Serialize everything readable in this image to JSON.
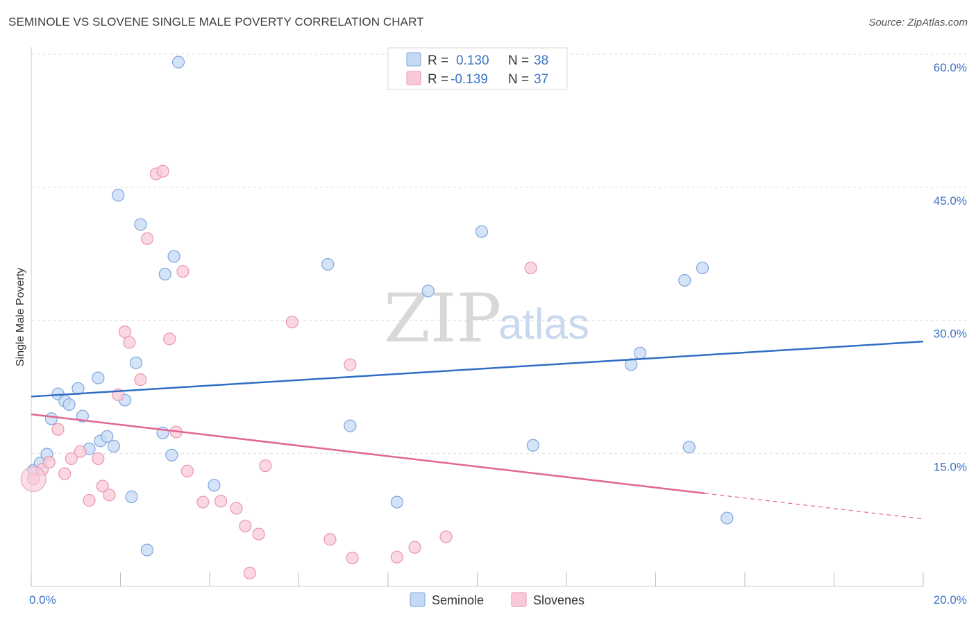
{
  "header": {
    "title": "SEMINOLE VS SLOVENE SINGLE MALE POVERTY CORRELATION CHART",
    "source": "Source: ZipAtlas.com"
  },
  "watermark": {
    "zip": "ZIP",
    "atlas": "atlas"
  },
  "legend_top": {
    "rows": [
      {
        "r_label": "R =",
        "r_value": "0.130",
        "n_label": "N =",
        "n_value": "38"
      },
      {
        "r_label": "R =",
        "r_value": "-0.139",
        "n_label": "N =",
        "n_value": "37"
      }
    ]
  },
  "chart_data": {
    "type": "scatter",
    "title": "SEMINOLE VS SLOVENE SINGLE MALE POVERTY CORRELATION CHART",
    "xlabel": "",
    "ylabel": "Single Male Poverty",
    "xlim": [
      0,
      20
    ],
    "ylim": [
      0,
      60
    ],
    "x_tick_labels": [
      "0.0%",
      "20.0%"
    ],
    "y_ticks": [
      15,
      30,
      45,
      60
    ],
    "y_tick_labels": [
      "15.0%",
      "30.0%",
      "45.0%",
      "60.0%"
    ],
    "legend": [
      "Seminole",
      "Slovenes"
    ],
    "colors": {
      "seminole_fill": "#c5d9f5",
      "seminole_stroke": "#7ea6dc",
      "seminole_line": "#2f6ec4",
      "slovenes_fill": "#f9c9d7",
      "slovenes_stroke": "#e896b0",
      "slovenes_line": "#e0668e",
      "value_text": "#3b73c8",
      "grid": "#dddddd"
    },
    "series": [
      {
        "name": "Seminole",
        "r": 0.13,
        "n": 38,
        "trend": {
          "x": [
            0,
            20
          ],
          "y": [
            21.4,
            27.6
          ]
        },
        "points": [
          {
            "x": 0.05,
            "y": 13.1
          },
          {
            "x": 0.2,
            "y": 13.9
          },
          {
            "x": 0.35,
            "y": 14.9
          },
          {
            "x": 0.45,
            "y": 18.9
          },
          {
            "x": 0.6,
            "y": 21.7
          },
          {
            "x": 0.75,
            "y": 20.9
          },
          {
            "x": 0.85,
            "y": 20.5
          },
          {
            "x": 1.05,
            "y": 22.3
          },
          {
            "x": 1.15,
            "y": 19.2
          },
          {
            "x": 1.3,
            "y": 15.5
          },
          {
            "x": 1.5,
            "y": 23.5
          },
          {
            "x": 1.55,
            "y": 16.4
          },
          {
            "x": 1.7,
            "y": 16.9
          },
          {
            "x": 1.85,
            "y": 15.8
          },
          {
            "x": 1.95,
            "y": 44.1
          },
          {
            "x": 2.1,
            "y": 21.0
          },
          {
            "x": 2.25,
            "y": 10.1
          },
          {
            "x": 2.35,
            "y": 25.2
          },
          {
            "x": 2.45,
            "y": 40.8
          },
          {
            "x": 2.6,
            "y": 4.1
          },
          {
            "x": 2.95,
            "y": 17.3
          },
          {
            "x": 3.0,
            "y": 35.2
          },
          {
            "x": 3.15,
            "y": 14.8
          },
          {
            "x": 3.2,
            "y": 37.2
          },
          {
            "x": 3.3,
            "y": 59.1
          },
          {
            "x": 4.1,
            "y": 11.4
          },
          {
            "x": 6.65,
            "y": 36.3
          },
          {
            "x": 7.15,
            "y": 18.1
          },
          {
            "x": 8.2,
            "y": 9.5
          },
          {
            "x": 8.9,
            "y": 33.3
          },
          {
            "x": 10.1,
            "y": 40.0
          },
          {
            "x": 11.25,
            "y": 15.9
          },
          {
            "x": 13.45,
            "y": 25.0
          },
          {
            "x": 13.65,
            "y": 26.3
          },
          {
            "x": 14.65,
            "y": 34.5
          },
          {
            "x": 15.05,
            "y": 35.9
          },
          {
            "x": 14.75,
            "y": 15.7
          },
          {
            "x": 15.6,
            "y": 7.7
          }
        ]
      },
      {
        "name": "Slovenes",
        "r": -0.139,
        "n": 37,
        "trend": {
          "x": [
            0,
            20
          ],
          "y": [
            19.4,
            7.6
          ],
          "solid_until_x": 15.1
        },
        "points": [
          {
            "x": 0.05,
            "y": 12.1
          },
          {
            "x": 0.25,
            "y": 13.2
          },
          {
            "x": 0.4,
            "y": 14.0
          },
          {
            "x": 0.6,
            "y": 17.7
          },
          {
            "x": 0.75,
            "y": 12.7
          },
          {
            "x": 0.9,
            "y": 14.4
          },
          {
            "x": 1.1,
            "y": 15.2
          },
          {
            "x": 1.3,
            "y": 9.7
          },
          {
            "x": 1.5,
            "y": 14.4
          },
          {
            "x": 1.6,
            "y": 11.3
          },
          {
            "x": 1.75,
            "y": 10.3
          },
          {
            "x": 1.95,
            "y": 21.6
          },
          {
            "x": 2.1,
            "y": 28.7
          },
          {
            "x": 2.2,
            "y": 27.5
          },
          {
            "x": 2.45,
            "y": 23.3
          },
          {
            "x": 2.6,
            "y": 39.2
          },
          {
            "x": 2.8,
            "y": 46.5
          },
          {
            "x": 2.95,
            "y": 46.8
          },
          {
            "x": 3.1,
            "y": 27.9
          },
          {
            "x": 3.25,
            "y": 17.4
          },
          {
            "x": 3.4,
            "y": 35.5
          },
          {
            "x": 3.5,
            "y": 13.0
          },
          {
            "x": 3.85,
            "y": 9.5
          },
          {
            "x": 4.25,
            "y": 9.6
          },
          {
            "x": 4.6,
            "y": 8.8
          },
          {
            "x": 4.8,
            "y": 6.8
          },
          {
            "x": 4.9,
            "y": 1.5
          },
          {
            "x": 5.1,
            "y": 5.9
          },
          {
            "x": 5.25,
            "y": 13.6
          },
          {
            "x": 5.85,
            "y": 29.8
          },
          {
            "x": 6.7,
            "y": 5.3
          },
          {
            "x": 7.15,
            "y": 25.0
          },
          {
            "x": 7.2,
            "y": 3.2
          },
          {
            "x": 8.2,
            "y": 3.3
          },
          {
            "x": 8.6,
            "y": 4.4
          },
          {
            "x": 9.3,
            "y": 5.6
          },
          {
            "x": 11.2,
            "y": 35.9
          }
        ]
      }
    ]
  }
}
